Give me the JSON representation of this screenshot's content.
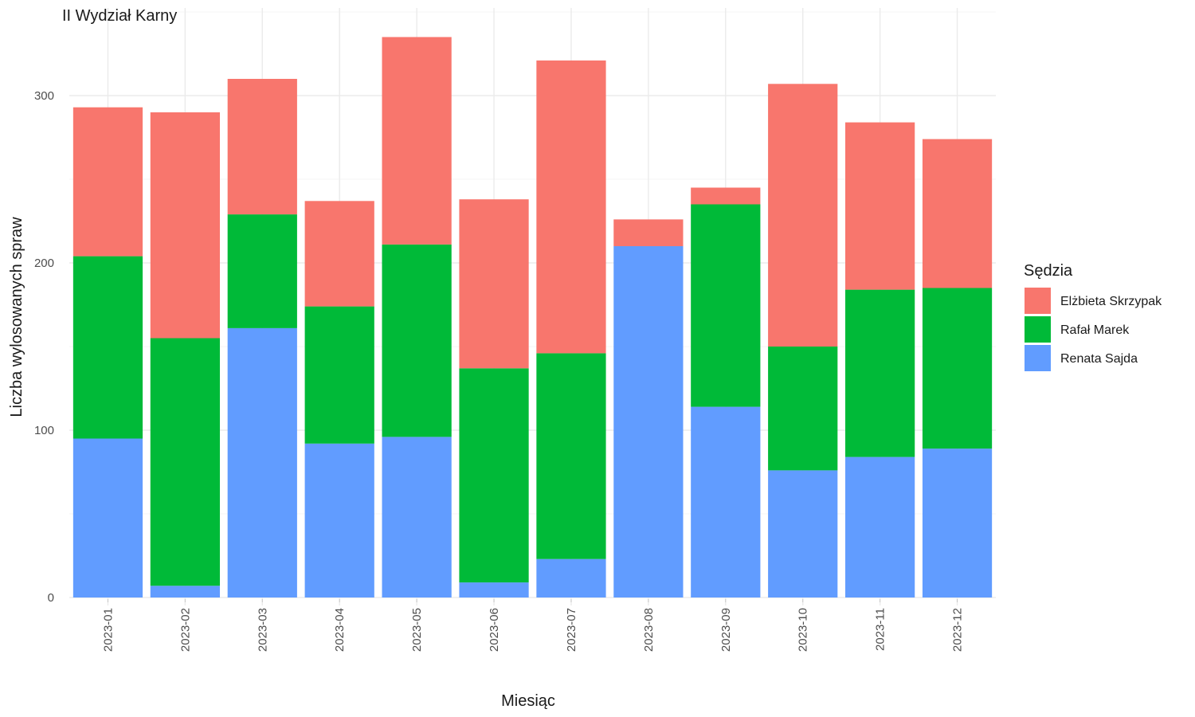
{
  "chart_data": {
    "type": "bar",
    "stacked": true,
    "title": "II Wydział Karny",
    "xlabel": "Miesiąc",
    "ylabel": "Liczba wylosowanych spraw",
    "ylim": [
      0,
      350
    ],
    "yticks": [
      0,
      100,
      200,
      300
    ],
    "grid": true,
    "legend_title": "Sędzia",
    "legend_position": "right",
    "categories": [
      "2023-01",
      "2023-02",
      "2023-03",
      "2023-04",
      "2023-05",
      "2023-06",
      "2023-07",
      "2023-08",
      "2023-09",
      "2023-10",
      "2023-11",
      "2023-12"
    ],
    "series": [
      {
        "name": "Renata Sajda",
        "color": "#619CFF",
        "values": [
          95,
          7,
          161,
          92,
          96,
          9,
          23,
          210,
          114,
          76,
          84,
          89
        ]
      },
      {
        "name": "Rafał Marek",
        "color": "#00BA38",
        "values": [
          109,
          148,
          68,
          82,
          115,
          128,
          123,
          0,
          121,
          74,
          100,
          96
        ]
      },
      {
        "name": "Elżbieta Skrzypak",
        "color": "#F8766D",
        "values": [
          89,
          135,
          81,
          63,
          124,
          101,
          175,
          16,
          10,
          157,
          100,
          89
        ]
      }
    ],
    "legend_order": [
      "Elżbieta Skrzypak",
      "Rafał Marek",
      "Renata Sajda"
    ]
  }
}
